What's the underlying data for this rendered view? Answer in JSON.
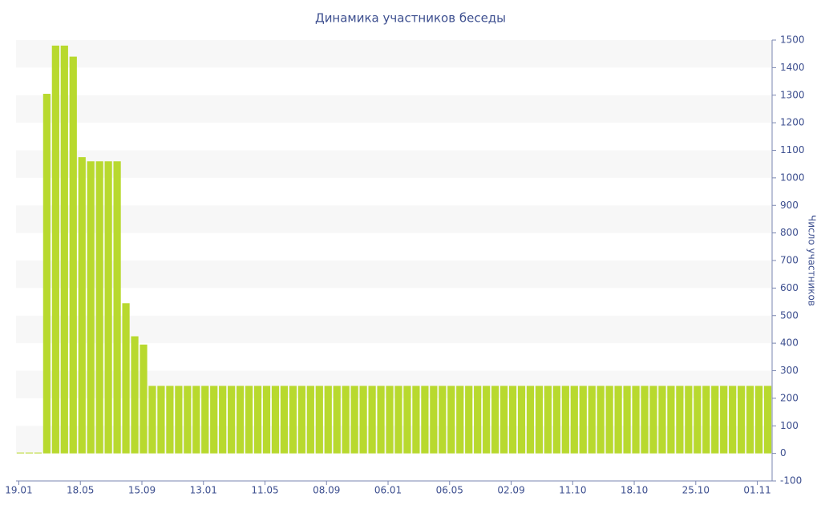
{
  "chart_data": {
    "type": "bar",
    "title": "Динамика участников беседы",
    "y_label": "Число участников",
    "categories": [
      "19.01",
      null,
      null,
      null,
      null,
      null,
      null,
      "18.05",
      null,
      null,
      null,
      null,
      null,
      null,
      "15.09",
      null,
      null,
      null,
      null,
      null,
      null,
      "13.01",
      null,
      null,
      null,
      null,
      null,
      null,
      "11.05",
      null,
      null,
      null,
      null,
      null,
      null,
      "08.09",
      null,
      null,
      null,
      null,
      null,
      null,
      "06.01",
      null,
      null,
      null,
      null,
      null,
      null,
      "06.05",
      null,
      null,
      null,
      null,
      null,
      null,
      "02.09",
      null,
      null,
      null,
      null,
      null,
      null,
      "11.10",
      null,
      null,
      null,
      null,
      null,
      null,
      "18.10",
      null,
      null,
      null,
      null,
      null,
      null,
      "25.10",
      null,
      null,
      null,
      null,
      null,
      null,
      "01.11",
      null
    ],
    "values": [
      3,
      3,
      3,
      1305,
      1480,
      1480,
      1440,
      1075,
      1060,
      1060,
      1060,
      1060,
      545,
      425,
      395,
      245,
      245,
      245,
      245,
      245,
      245,
      245,
      245,
      245,
      245,
      245,
      245,
      245,
      245,
      245,
      245,
      245,
      245,
      245,
      245,
      245,
      245,
      245,
      245,
      245,
      245,
      245,
      245,
      245,
      245,
      245,
      245,
      245,
      245,
      245,
      245,
      245,
      245,
      245,
      245,
      245,
      245,
      245,
      245,
      245,
      245,
      245,
      245,
      245,
      245,
      245,
      245,
      245,
      245,
      245,
      245,
      245,
      245,
      245,
      245,
      245,
      245,
      245,
      245,
      245,
      245,
      245,
      245,
      245,
      245,
      245
    ],
    "color": "#b8d92e",
    "ylim": [
      -100,
      1500
    ],
    "yticks": [
      -100,
      0,
      100,
      200,
      300,
      400,
      500,
      600,
      700,
      800,
      900,
      1000,
      1100,
      1200,
      1300,
      1400,
      1500
    ],
    "y_axis_side": "right",
    "grid": "bands"
  }
}
